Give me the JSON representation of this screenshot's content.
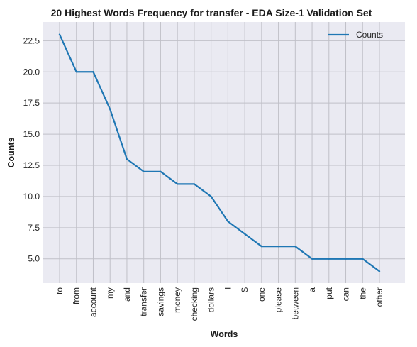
{
  "chart_data": {
    "type": "line",
    "title": "20 Highest Words Frequency for transfer - EDA Size-1 Validation Set",
    "xlabel": "Words",
    "ylabel": "Counts",
    "categories": [
      "to",
      "from",
      "account",
      "my",
      "and",
      "transfer",
      "savings",
      "money",
      "checking",
      "dollars",
      "i",
      "$",
      "one",
      "please",
      "between",
      "a",
      "put",
      "can",
      "the",
      "other"
    ],
    "series": [
      {
        "name": "Counts",
        "values": [
          23,
          20,
          20,
          17,
          13,
          12,
          12,
          11,
          11,
          10,
          8,
          7,
          6,
          6,
          6,
          5,
          5,
          5,
          5,
          4
        ]
      }
    ],
    "ylim": [
      3.05,
      24.0
    ],
    "yticks": [
      5.0,
      7.5,
      10.0,
      12.5,
      15.0,
      17.5,
      20.0,
      22.5
    ],
    "ytick_labels": [
      "5.0",
      "7.5",
      "10.0",
      "12.5",
      "15.0",
      "17.5",
      "20.0",
      "22.5"
    ],
    "grid": true,
    "legend_position": "top-right",
    "colors": {
      "line": "#1f77b4",
      "plot_background": "#eaeaf2",
      "grid": "#c0c0c8"
    }
  }
}
